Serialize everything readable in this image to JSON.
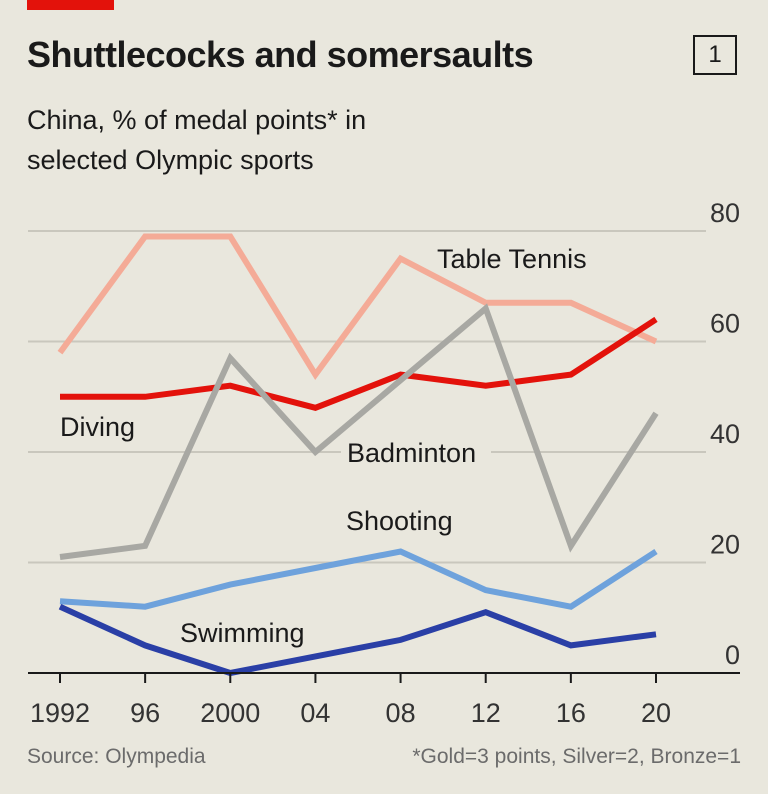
{
  "header": {
    "title": "Shuttlecocks and somersaults",
    "badge": "1",
    "subtitle_line1": "China, % of medal points* in",
    "subtitle_line2": "selected Olympic sports"
  },
  "footer": {
    "source": "Source: Olympedia",
    "note": "*Gold=3 points, Silver=2, Bronze=1"
  },
  "colors": {
    "accent_tag": "#e3120b",
    "background": "#e9e7dd",
    "gridline": "#c9c7bd"
  },
  "chart_data": {
    "type": "line",
    "x": [
      1992,
      1996,
      2000,
      2004,
      2008,
      2012,
      2016,
      2020
    ],
    "x_tick_labels": [
      "1992",
      "96",
      "2000",
      "04",
      "08",
      "12",
      "16",
      "20"
    ],
    "ylim": [
      0,
      80
    ],
    "y_ticks": [
      0,
      20,
      40,
      60,
      80
    ],
    "y_axis_side": "right",
    "grid": true,
    "series": [
      {
        "name": "Table Tennis",
        "color": "#f4ab97",
        "values": [
          58,
          79,
          79,
          54,
          75,
          67,
          67,
          60
        ]
      },
      {
        "name": "Diving",
        "color": "#e3120b",
        "values": [
          50,
          50,
          52,
          48,
          54,
          52,
          54,
          64
        ]
      },
      {
        "name": "Badminton",
        "color": "#a8a8a3",
        "values": [
          21,
          23,
          57,
          40,
          53,
          66,
          23,
          47
        ]
      },
      {
        "name": "Shooting",
        "color": "#6ea2dc",
        "values": [
          13,
          12,
          16,
          19,
          22,
          15,
          12,
          22
        ]
      },
      {
        "name": "Swimming",
        "color": "#2a3fa6",
        "values": [
          12,
          5,
          0,
          3,
          6,
          11,
          5,
          7
        ]
      }
    ]
  }
}
